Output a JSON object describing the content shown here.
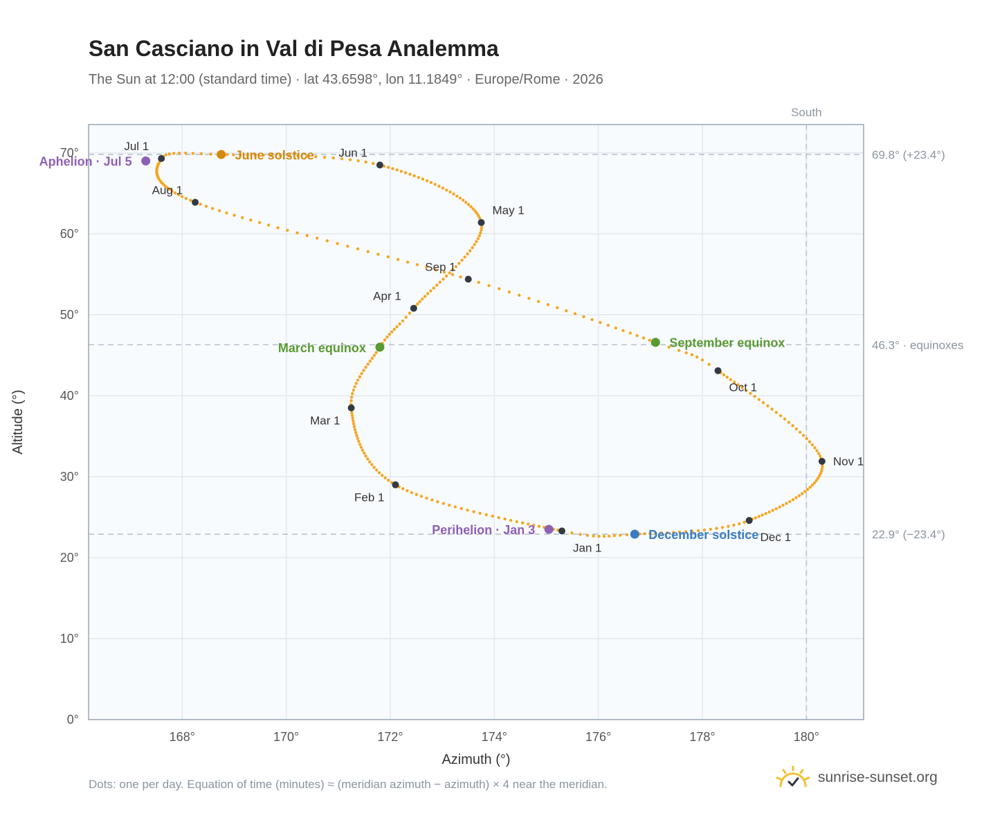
{
  "header": {
    "title": "San Casciano in Val di Pesa Analemma",
    "subtitle": "The Sun at 12:00 (standard time) · lat 43.6598°, lon 11.1849° · Europe/Rome · 2026"
  },
  "footer": {
    "note": "Dots: one per day. Equation of time (minutes) ≈ (meridian azimuth − azimuth) × 4 near the meridian.",
    "brand": "sunrise-sunset.org",
    "brand_icon": "sun-logo-icon"
  },
  "colors": {
    "path": "#f5a623",
    "month_marker": "#333a44",
    "june_solstice": "#d4890a",
    "equinox": "#5a9a32",
    "december_solstice": "#3a7cc2",
    "apsis": "#8e5fb5",
    "reference_line": "#b8c2cc"
  },
  "chart_data": {
    "type": "scatter",
    "title": "San Casciano in Val di Pesa Analemma",
    "xlabel": "Azimuth (°)",
    "ylabel": "Altitude (°)",
    "xlim": [
      166.2,
      181.1
    ],
    "ylim": [
      0,
      73.5
    ],
    "x_ticks": [
      168,
      170,
      172,
      174,
      176,
      178,
      180
    ],
    "y_ticks": [
      0,
      10,
      20,
      30,
      40,
      50,
      60,
      70
    ],
    "x_tick_labels": [
      "168°",
      "170°",
      "172°",
      "174°",
      "176°",
      "178°",
      "180°"
    ],
    "y_tick_labels": [
      "0°",
      "10°",
      "20°",
      "30°",
      "40°",
      "50°",
      "60°",
      "70°"
    ],
    "grid": true,
    "daily_points_per_year": 365,
    "path_control_points": [
      {
        "day": 1,
        "az": 175.3,
        "alt": 23.3
      },
      {
        "day": 32,
        "az": 172.1,
        "alt": 29.0
      },
      {
        "day": 60,
        "az": 171.25,
        "alt": 38.5
      },
      {
        "day": 79,
        "az": 171.8,
        "alt": 46.0
      },
      {
        "day": 91,
        "az": 172.45,
        "alt": 50.8
      },
      {
        "day": 121,
        "az": 173.75,
        "alt": 61.4
      },
      {
        "day": 152,
        "az": 171.8,
        "alt": 68.5
      },
      {
        "day": 172,
        "az": 168.75,
        "alt": 69.8
      },
      {
        "day": 182,
        "az": 167.6,
        "alt": 69.3
      },
      {
        "day": 213,
        "az": 168.25,
        "alt": 63.9
      },
      {
        "day": 244,
        "az": 173.5,
        "alt": 54.4
      },
      {
        "day": 266,
        "az": 177.1,
        "alt": 46.6
      },
      {
        "day": 274,
        "az": 178.3,
        "alt": 43.1
      },
      {
        "day": 305,
        "az": 180.3,
        "alt": 31.9
      },
      {
        "day": 335,
        "az": 178.9,
        "alt": 24.6
      },
      {
        "day": 355,
        "az": 176.7,
        "alt": 22.9
      },
      {
        "day": 366,
        "az": 175.3,
        "alt": 23.3
      }
    ],
    "month_markers": [
      {
        "label": "Jan 1",
        "az": 175.3,
        "alt": 23.3,
        "pos": "below-right"
      },
      {
        "label": "Feb 1",
        "az": 172.1,
        "alt": 29.0,
        "pos": "below-left"
      },
      {
        "label": "Mar 1",
        "az": 171.25,
        "alt": 38.5,
        "pos": "below-left"
      },
      {
        "label": "Apr 1",
        "az": 172.45,
        "alt": 50.8,
        "pos": "above-left"
      },
      {
        "label": "May 1",
        "az": 173.75,
        "alt": 61.4,
        "pos": "above-right"
      },
      {
        "label": "Jun 1",
        "az": 171.8,
        "alt": 68.5,
        "pos": "above-left"
      },
      {
        "label": "Jul 1",
        "az": 167.6,
        "alt": 69.3,
        "pos": "above-left"
      },
      {
        "label": "Aug 1",
        "az": 168.25,
        "alt": 63.9,
        "pos": "above-left"
      },
      {
        "label": "Sep 1",
        "az": 173.5,
        "alt": 54.4,
        "pos": "above-left"
      },
      {
        "label": "Oct 1",
        "az": 178.3,
        "alt": 43.1,
        "pos": "below-right"
      },
      {
        "label": "Nov 1",
        "az": 180.3,
        "alt": 31.9,
        "pos": "right"
      },
      {
        "label": "Dec 1",
        "az": 178.9,
        "alt": 24.6,
        "pos": "below-right"
      }
    ],
    "events": [
      {
        "label": "June solstice",
        "az": 168.75,
        "alt": 69.8,
        "color": "#d4890a",
        "pos": "right"
      },
      {
        "label": "March equinox",
        "az": 171.8,
        "alt": 46.0,
        "color": "#5a9a32",
        "pos": "left"
      },
      {
        "label": "September equinox",
        "az": 177.1,
        "alt": 46.6,
        "color": "#5a9a32",
        "pos": "right"
      },
      {
        "label": "December solstice",
        "az": 176.7,
        "alt": 22.9,
        "color": "#3a7cc2",
        "pos": "right"
      },
      {
        "label": "Aphelion · Jul 5",
        "az": 167.3,
        "alt": 69.0,
        "color": "#8e5fb5",
        "pos": "left"
      },
      {
        "label": "Perihelion · Jan 3",
        "az": 175.05,
        "alt": 23.5,
        "color": "#8e5fb5",
        "pos": "left"
      }
    ],
    "reference_lines": {
      "horizontal": [
        {
          "alt": 69.8,
          "label": "69.8° (+23.4°)"
        },
        {
          "alt": 46.3,
          "label": "46.3° · equinoxes"
        },
        {
          "alt": 22.9,
          "label": "22.9° (−23.4°)"
        }
      ],
      "vertical": [
        {
          "az": 180,
          "label": "South"
        }
      ]
    }
  }
}
